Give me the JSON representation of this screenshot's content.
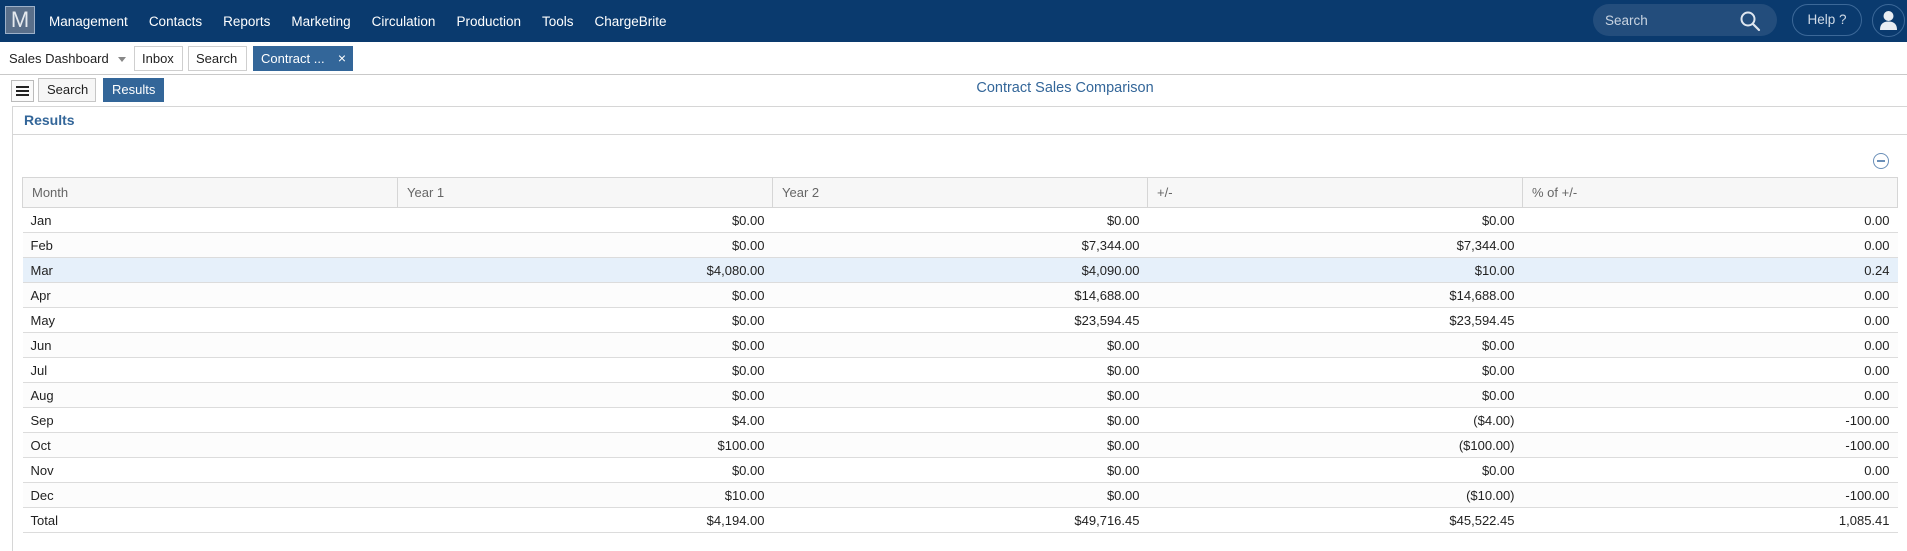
{
  "topnav": {
    "logo": "M",
    "items": [
      "Management",
      "Contacts",
      "Reports",
      "Marketing",
      "Circulation",
      "Production",
      "Tools",
      "ChargeBrite"
    ],
    "search_placeholder": "Search",
    "help_label": "Help ?"
  },
  "tabs": {
    "dashboard": "Sales Dashboard",
    "inbox": "Inbox",
    "search": "Search",
    "active": "Contract ...",
    "close": "×"
  },
  "subbar": {
    "search_label": "Search",
    "results_label": "Results",
    "page_title": "Contract Sales Comparison"
  },
  "panel": {
    "title": "Results"
  },
  "table": {
    "columns": [
      "Month",
      "Year 1",
      "Year 2",
      "+/-",
      "% of +/-"
    ],
    "rows": [
      [
        "Jan",
        "$0.00",
        "$0.00",
        "$0.00",
        "0.00"
      ],
      [
        "Feb",
        "$0.00",
        "$7,344.00",
        "$7,344.00",
        "0.00"
      ],
      [
        "Mar",
        "$4,080.00",
        "$4,090.00",
        "$10.00",
        "0.24"
      ],
      [
        "Apr",
        "$0.00",
        "$14,688.00",
        "$14,688.00",
        "0.00"
      ],
      [
        "May",
        "$0.00",
        "$23,594.45",
        "$23,594.45",
        "0.00"
      ],
      [
        "Jun",
        "$0.00",
        "$0.00",
        "$0.00",
        "0.00"
      ],
      [
        "Jul",
        "$0.00",
        "$0.00",
        "$0.00",
        "0.00"
      ],
      [
        "Aug",
        "$0.00",
        "$0.00",
        "$0.00",
        "0.00"
      ],
      [
        "Sep",
        "$4.00",
        "$0.00",
        "($4.00)",
        "-100.00"
      ],
      [
        "Oct",
        "$100.00",
        "$0.00",
        "($100.00)",
        "-100.00"
      ],
      [
        "Nov",
        "$0.00",
        "$0.00",
        "$0.00",
        "0.00"
      ],
      [
        "Dec",
        "$10.00",
        "$0.00",
        "($10.00)",
        "-100.00"
      ],
      [
        "Total",
        "$4,194.00",
        "$49,716.45",
        "$45,522.45",
        "1,085.41"
      ]
    ],
    "highlighted_row": 2
  },
  "colors": {
    "nav_bg": "#0a3a6e",
    "accent": "#336699",
    "row_highlight": "#e6f0fa"
  }
}
